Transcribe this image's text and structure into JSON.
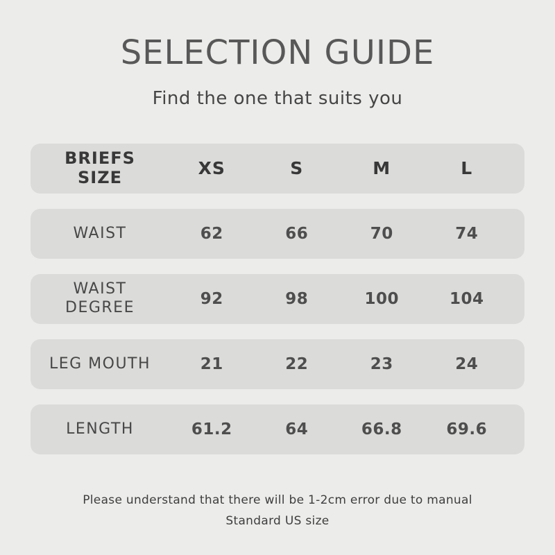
{
  "page": {
    "background_color": "#ECECEA",
    "row_color": "#DBDBD9",
    "title_color": "#585858",
    "table_header_color": "#383838",
    "body_text_color": "#474747"
  },
  "header": {
    "title": "SELECTION GUIDE",
    "subtitle": "Find the one that suits you"
  },
  "size_table": {
    "header": {
      "label": "BRIEFS\nSIZE",
      "sizes": [
        "XS",
        "S",
        "M",
        "L"
      ]
    },
    "rows": [
      {
        "label": "WAIST",
        "values": [
          "62",
          "66",
          "70",
          "74"
        ]
      },
      {
        "label": "WAIST\nDEGREE",
        "values": [
          "92",
          "98",
          "100",
          "104"
        ]
      },
      {
        "label": "LEG MOUTH",
        "values": [
          "21",
          "22",
          "23",
          "24"
        ]
      },
      {
        "label": "LENGTH",
        "values": [
          "61.2",
          "64",
          "66.8",
          "69.6"
        ]
      }
    ]
  },
  "footer": {
    "note_line1": "Please understand that there will be 1-2cm error due to manual",
    "note_line2": "Standard US size"
  }
}
